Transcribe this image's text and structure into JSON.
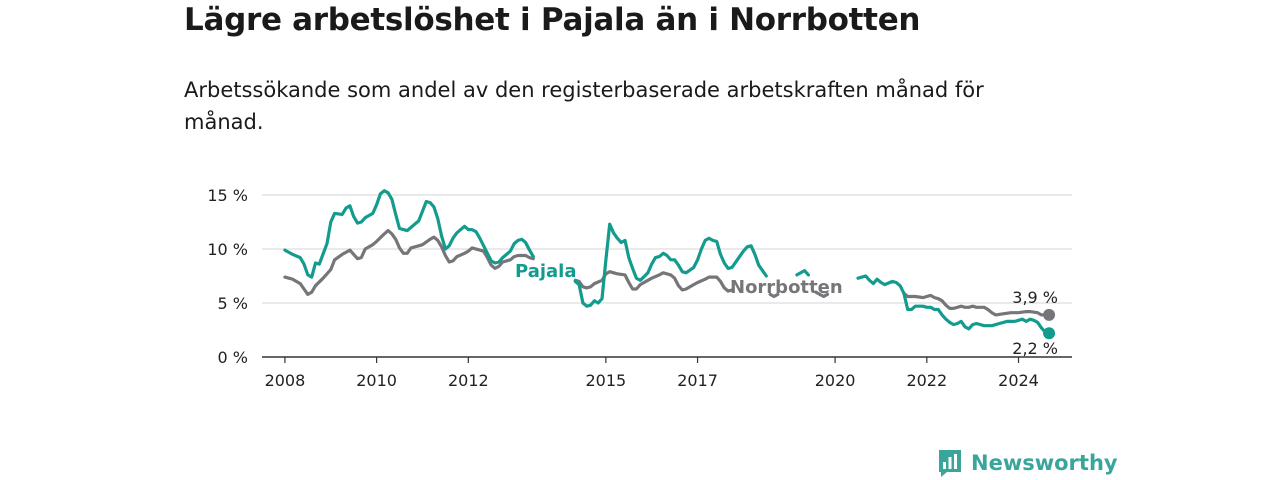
{
  "header": {
    "title": "Lägre arbetslöshet i Pajala än i Norrbotten",
    "subtitle": "Arbetssökande som andel av den registerbaserade arbetskraften månad för månad."
  },
  "brand": {
    "name": "Newsworthy",
    "color": "#3aa69b",
    "logo_icon": "bar-chart-speech-bubble-icon"
  },
  "chart_data": {
    "type": "line",
    "xlabel": "",
    "ylabel": "",
    "ylim": [
      0,
      15
    ],
    "xlim": [
      "2007-07",
      "2025-03"
    ],
    "grid": true,
    "y_ticks": [
      {
        "value": 0,
        "label": "0 %"
      },
      {
        "value": 5,
        "label": "5 %"
      },
      {
        "value": 10,
        "label": "10 %"
      },
      {
        "value": 15,
        "label": "15 %"
      }
    ],
    "x_ticks": [
      "2008",
      "2010",
      "2012",
      "2015",
      "2017",
      "2020",
      "2022",
      "2024"
    ],
    "series": [
      {
        "name": "Pajala",
        "color": "#139c8e",
        "end_label": "2,2 %",
        "points": [
          [
            "2008-01",
            9.9
          ],
          [
            "2008-03",
            9.5
          ],
          [
            "2008-05",
            9.2
          ],
          [
            "2008-06",
            8.6
          ],
          [
            "2008-07",
            7.6
          ],
          [
            "2008-08",
            7.4
          ],
          [
            "2008-09",
            8.7
          ],
          [
            "2008-10",
            8.6
          ],
          [
            "2008-12",
            10.5
          ],
          [
            "2009-01",
            12.5
          ],
          [
            "2009-02",
            13.3
          ],
          [
            "2009-04",
            13.2
          ],
          [
            "2009-05",
            13.8
          ],
          [
            "2009-06",
            14.0
          ],
          [
            "2009-07",
            13.0
          ],
          [
            "2009-08",
            12.4
          ],
          [
            "2009-09",
            12.5
          ],
          [
            "2009-10",
            12.9
          ],
          [
            "2009-12",
            13.3
          ],
          [
            "2010-01",
            14.1
          ],
          [
            "2010-02",
            15.1
          ],
          [
            "2010-03",
            15.4
          ],
          [
            "2010-04",
            15.2
          ],
          [
            "2010-05",
            14.6
          ],
          [
            "2010-06",
            13.2
          ],
          [
            "2010-07",
            11.9
          ],
          [
            "2010-08",
            11.8
          ],
          [
            "2010-09",
            11.7
          ],
          [
            "2010-10",
            12.0
          ],
          [
            "2010-12",
            12.6
          ],
          [
            "2011-01",
            13.5
          ],
          [
            "2011-02",
            14.4
          ],
          [
            "2011-03",
            14.3
          ],
          [
            "2011-04",
            13.9
          ],
          [
            "2011-05",
            12.8
          ],
          [
            "2011-06",
            11.2
          ],
          [
            "2011-07",
            10.0
          ],
          [
            "2011-08",
            10.3
          ],
          [
            "2011-09",
            11.0
          ],
          [
            "2011-10",
            11.5
          ],
          [
            "2011-12",
            12.1
          ],
          [
            "2012-01",
            11.8
          ],
          [
            "2012-02",
            11.8
          ],
          [
            "2012-03",
            11.6
          ],
          [
            "2012-04",
            11.0
          ],
          [
            "2012-05",
            10.3
          ],
          [
            "2012-06",
            9.6
          ],
          [
            "2012-07",
            8.9
          ],
          [
            "2012-08",
            8.7
          ],
          [
            "2012-09",
            8.8
          ],
          [
            "2012-10",
            9.2
          ],
          [
            "2012-12",
            9.8
          ],
          [
            "2013-01",
            10.5
          ],
          [
            "2013-02",
            10.8
          ],
          [
            "2013-03",
            10.9
          ],
          [
            "2013-04",
            10.6
          ],
          [
            "2013-05",
            9.9
          ],
          [
            "2013-06",
            9.3
          ],
          [
            "2014-05",
            7.0
          ],
          [
            "2014-06",
            6.7
          ],
          [
            "2014-07",
            5.0
          ],
          [
            "2014-08",
            4.7
          ],
          [
            "2014-09",
            4.8
          ],
          [
            "2014-10",
            5.2
          ],
          [
            "2014-11",
            5.0
          ],
          [
            "2014-12",
            5.4
          ],
          [
            "2015-01",
            9.0
          ],
          [
            "2015-02",
            12.3
          ],
          [
            "2015-03",
            11.5
          ],
          [
            "2015-04",
            11.0
          ],
          [
            "2015-05",
            10.6
          ],
          [
            "2015-06",
            10.8
          ],
          [
            "2015-07",
            9.2
          ],
          [
            "2015-08",
            8.2
          ],
          [
            "2015-09",
            7.3
          ],
          [
            "2015-10",
            7.1
          ],
          [
            "2015-12",
            7.8
          ],
          [
            "2016-01",
            8.6
          ],
          [
            "2016-02",
            9.2
          ],
          [
            "2016-03",
            9.3
          ],
          [
            "2016-04",
            9.6
          ],
          [
            "2016-05",
            9.4
          ],
          [
            "2016-06",
            9.0
          ],
          [
            "2016-07",
            9.0
          ],
          [
            "2016-08",
            8.5
          ],
          [
            "2016-09",
            7.9
          ],
          [
            "2016-10",
            7.8
          ],
          [
            "2016-12",
            8.3
          ],
          [
            "2017-01",
            9.0
          ],
          [
            "2017-02",
            10.0
          ],
          [
            "2017-03",
            10.8
          ],
          [
            "2017-04",
            11.0
          ],
          [
            "2017-05",
            10.8
          ],
          [
            "2017-06",
            10.7
          ],
          [
            "2017-07",
            9.5
          ],
          [
            "2017-08",
            8.7
          ],
          [
            "2017-09",
            8.2
          ],
          [
            "2017-10",
            8.3
          ],
          [
            "2017-12",
            9.3
          ],
          [
            "2018-01",
            9.8
          ],
          [
            "2018-02",
            10.2
          ],
          [
            "2018-03",
            10.3
          ],
          [
            "2018-04",
            9.5
          ],
          [
            "2018-05",
            8.5
          ],
          [
            "2018-06",
            8.0
          ],
          [
            "2018-07",
            7.5
          ],
          [
            "2019-03",
            7.6
          ],
          [
            "2019-05",
            8.0
          ],
          [
            "2019-06",
            7.6
          ],
          [
            "2020-07",
            7.3
          ],
          [
            "2020-09",
            7.5
          ],
          [
            "2020-10",
            7.1
          ],
          [
            "2020-11",
            6.8
          ],
          [
            "2020-12",
            7.2
          ],
          [
            "2021-01",
            6.9
          ],
          [
            "2021-02",
            6.7
          ],
          [
            "2021-04",
            7.0
          ],
          [
            "2021-05",
            6.9
          ],
          [
            "2021-06",
            6.6
          ],
          [
            "2021-07",
            5.9
          ],
          [
            "2021-08",
            4.4
          ],
          [
            "2021-09",
            4.4
          ],
          [
            "2021-10",
            4.7
          ],
          [
            "2021-12",
            4.7
          ],
          [
            "2022-01",
            4.6
          ],
          [
            "2022-02",
            4.6
          ],
          [
            "2022-03",
            4.4
          ],
          [
            "2022-04",
            4.4
          ],
          [
            "2022-05",
            3.9
          ],
          [
            "2022-06",
            3.5
          ],
          [
            "2022-07",
            3.2
          ],
          [
            "2022-08",
            3.0
          ],
          [
            "2022-09",
            3.1
          ],
          [
            "2022-10",
            3.3
          ],
          [
            "2022-11",
            2.8
          ],
          [
            "2022-12",
            2.6
          ],
          [
            "2023-01",
            3.0
          ],
          [
            "2023-02",
            3.1
          ],
          [
            "2023-04",
            2.9
          ],
          [
            "2023-06",
            2.9
          ],
          [
            "2023-08",
            3.1
          ],
          [
            "2023-10",
            3.3
          ],
          [
            "2023-12",
            3.3
          ],
          [
            "2024-01",
            3.4
          ],
          [
            "2024-02",
            3.5
          ],
          [
            "2024-03",
            3.3
          ],
          [
            "2024-04",
            3.5
          ],
          [
            "2024-05",
            3.4
          ],
          [
            "2024-06",
            3.2
          ],
          [
            "2024-07",
            2.7
          ],
          [
            "2024-08",
            2.3
          ],
          [
            "2024-09",
            2.2
          ]
        ]
      },
      {
        "name": "Norrbotten",
        "color": "#76767a",
        "end_label": "3,9 %",
        "points": [
          [
            "2008-01",
            7.4
          ],
          [
            "2008-03",
            7.2
          ],
          [
            "2008-05",
            6.8
          ],
          [
            "2008-06",
            6.3
          ],
          [
            "2008-07",
            5.8
          ],
          [
            "2008-08",
            6.0
          ],
          [
            "2008-09",
            6.6
          ],
          [
            "2008-11",
            7.3
          ],
          [
            "2009-01",
            8.1
          ],
          [
            "2009-02",
            9.0
          ],
          [
            "2009-04",
            9.5
          ],
          [
            "2009-06",
            9.9
          ],
          [
            "2009-07",
            9.5
          ],
          [
            "2009-08",
            9.1
          ],
          [
            "2009-09",
            9.2
          ],
          [
            "2009-10",
            10.0
          ],
          [
            "2009-12",
            10.4
          ],
          [
            "2010-01",
            10.7
          ],
          [
            "2010-03",
            11.4
          ],
          [
            "2010-04",
            11.7
          ],
          [
            "2010-05",
            11.4
          ],
          [
            "2010-06",
            10.9
          ],
          [
            "2010-07",
            10.1
          ],
          [
            "2010-08",
            9.6
          ],
          [
            "2010-09",
            9.6
          ],
          [
            "2010-10",
            10.1
          ],
          [
            "2010-12",
            10.3
          ],
          [
            "2011-01",
            10.4
          ],
          [
            "2011-03",
            10.9
          ],
          [
            "2011-04",
            11.1
          ],
          [
            "2011-05",
            10.8
          ],
          [
            "2011-06",
            10.2
          ],
          [
            "2011-07",
            9.4
          ],
          [
            "2011-08",
            8.8
          ],
          [
            "2011-09",
            8.9
          ],
          [
            "2011-10",
            9.3
          ],
          [
            "2011-12",
            9.6
          ],
          [
            "2012-01",
            9.8
          ],
          [
            "2012-02",
            10.1
          ],
          [
            "2012-04",
            9.9
          ],
          [
            "2012-05",
            9.8
          ],
          [
            "2012-06",
            9.2
          ],
          [
            "2012-07",
            8.5
          ],
          [
            "2012-08",
            8.2
          ],
          [
            "2012-09",
            8.4
          ],
          [
            "2012-10",
            8.8
          ],
          [
            "2012-12",
            9.0
          ],
          [
            "2013-01",
            9.3
          ],
          [
            "2013-02",
            9.4
          ],
          [
            "2013-04",
            9.4
          ],
          [
            "2013-05",
            9.2
          ],
          [
            "2013-06",
            9.1
          ],
          [
            "2014-05",
            7.1
          ],
          [
            "2014-06",
            7.0
          ],
          [
            "2014-07",
            6.5
          ],
          [
            "2014-08",
            6.4
          ],
          [
            "2014-09",
            6.5
          ],
          [
            "2014-10",
            6.8
          ],
          [
            "2014-12",
            7.1
          ],
          [
            "2015-01",
            7.7
          ],
          [
            "2015-02",
            7.9
          ],
          [
            "2015-04",
            7.7
          ],
          [
            "2015-06",
            7.6
          ],
          [
            "2015-07",
            6.9
          ],
          [
            "2015-08",
            6.3
          ],
          [
            "2015-09",
            6.3
          ],
          [
            "2015-10",
            6.7
          ],
          [
            "2015-12",
            7.1
          ],
          [
            "2016-01",
            7.3
          ],
          [
            "2016-03",
            7.6
          ],
          [
            "2016-04",
            7.8
          ],
          [
            "2016-06",
            7.6
          ],
          [
            "2016-07",
            7.3
          ],
          [
            "2016-08",
            6.6
          ],
          [
            "2016-09",
            6.2
          ],
          [
            "2016-10",
            6.3
          ],
          [
            "2016-12",
            6.7
          ],
          [
            "2017-01",
            6.9
          ],
          [
            "2017-03",
            7.2
          ],
          [
            "2017-04",
            7.4
          ],
          [
            "2017-06",
            7.4
          ],
          [
            "2017-07",
            7.0
          ],
          [
            "2017-08",
            6.4
          ],
          [
            "2017-09",
            6.1
          ],
          [
            "2017-10",
            6.2
          ],
          [
            "2018-08",
            5.8
          ],
          [
            "2018-09",
            5.6
          ],
          [
            "2018-10",
            5.8
          ],
          [
            "2019-08",
            6.0
          ],
          [
            "2019-09",
            5.8
          ],
          [
            "2019-10",
            5.6
          ],
          [
            "2019-11",
            5.8
          ],
          [
            "2021-07",
            5.9
          ],
          [
            "2021-08",
            5.6
          ],
          [
            "2021-10",
            5.6
          ],
          [
            "2021-12",
            5.5
          ],
          [
            "2022-01",
            5.6
          ],
          [
            "2022-02",
            5.7
          ],
          [
            "2022-03",
            5.5
          ],
          [
            "2022-04",
            5.4
          ],
          [
            "2022-05",
            5.2
          ],
          [
            "2022-06",
            4.8
          ],
          [
            "2022-07",
            4.5
          ],
          [
            "2022-08",
            4.5
          ],
          [
            "2022-10",
            4.7
          ],
          [
            "2022-11",
            4.6
          ],
          [
            "2022-12",
            4.6
          ],
          [
            "2023-01",
            4.7
          ],
          [
            "2023-02",
            4.6
          ],
          [
            "2023-04",
            4.6
          ],
          [
            "2023-05",
            4.4
          ],
          [
            "2023-06",
            4.1
          ],
          [
            "2023-07",
            3.9
          ],
          [
            "2023-09",
            4.0
          ],
          [
            "2023-11",
            4.1
          ],
          [
            "2024-01",
            4.1
          ],
          [
            "2024-03",
            4.2
          ],
          [
            "2024-04",
            4.2
          ],
          [
            "2024-06",
            4.1
          ],
          [
            "2024-07",
            3.9
          ],
          [
            "2024-08",
            3.9
          ],
          [
            "2024-09",
            3.9
          ]
        ]
      }
    ]
  }
}
